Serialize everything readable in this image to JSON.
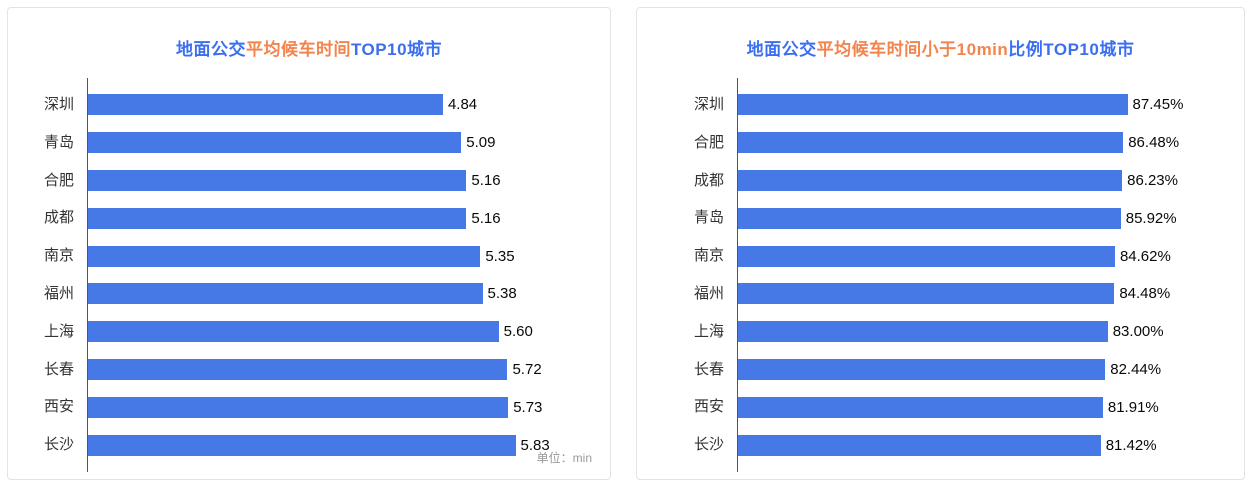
{
  "colors": {
    "bar": "#4678e6",
    "title_blue": "#3b6ff0",
    "title_orange": "#f2854e",
    "axis_line": "#555555",
    "category_label": "#333333",
    "value_label": "#0a0a0a",
    "unit_note": "#999999",
    "card_border": "#e3e3e3",
    "card_background": "#ffffff"
  },
  "chart_data": [
    {
      "type": "bar",
      "orientation": "horizontal",
      "title": "地面公交平均候车时间TOP10城市",
      "title_parts": [
        {
          "text": "地面公交",
          "color": "blue"
        },
        {
          "text": "平均候车时间",
          "color": "orange"
        },
        {
          "text": "TOP10城市",
          "color": "blue"
        }
      ],
      "categories": [
        "深圳",
        "青岛",
        "合肥",
        "成都",
        "南京",
        "福州",
        "上海",
        "长春",
        "西安",
        "长沙"
      ],
      "values": [
        4.84,
        5.09,
        5.16,
        5.16,
        5.35,
        5.38,
        5.6,
        5.72,
        5.73,
        5.83
      ],
      "value_labels": [
        "4.84",
        "5.09",
        "5.16",
        "5.16",
        "5.35",
        "5.38",
        "5.60",
        "5.72",
        "5.73",
        "5.83"
      ],
      "unit_note": "单位：min",
      "unit": "min",
      "xlim": [
        0,
        6.9
      ],
      "bar_color": "#4678e6",
      "grid": false,
      "legend": "none",
      "value_label_position": "right-of-bar"
    },
    {
      "type": "bar",
      "orientation": "horizontal",
      "title": "地面公交平均候车时间小于10min比例TOP10城市",
      "title_parts": [
        {
          "text": "地面公交",
          "color": "blue"
        },
        {
          "text": "平均候车时间小于10min",
          "color": "orange"
        },
        {
          "text": "比例TOP10城市",
          "color": "blue"
        }
      ],
      "categories": [
        "深圳",
        "合肥",
        "成都",
        "青岛",
        "南京",
        "福州",
        "上海",
        "长春",
        "西安",
        "长沙"
      ],
      "values": [
        87.45,
        86.48,
        86.23,
        85.92,
        84.62,
        84.48,
        83.0,
        82.44,
        81.91,
        81.42
      ],
      "value_labels": [
        "87.45%",
        "86.48%",
        "86.23%",
        "85.92%",
        "84.62%",
        "84.48%",
        "83.00%",
        "82.44%",
        "81.91%",
        "81.42%"
      ],
      "unit": "%",
      "xlim": [
        0,
        110
      ],
      "bar_color": "#4678e6",
      "grid": false,
      "legend": "none",
      "value_label_position": "right-of-bar"
    }
  ]
}
